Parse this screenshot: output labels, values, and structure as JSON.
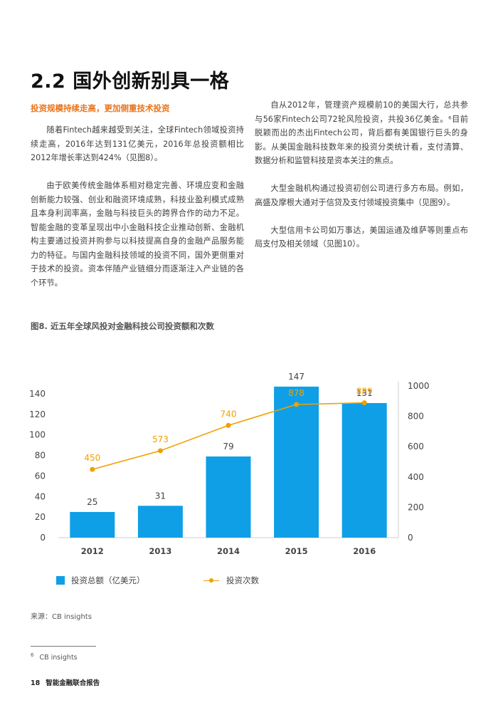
{
  "section_title": "2.2 国外创新别具一格",
  "subheading": "投资规模持续走高，更加侧重技术投资",
  "left_paragraphs": [
    "随着Fintech越来越受到关注，全球Fintech领域投资持续走高，2016年达到131亿美元，2016年总投资额相比2012年增长率达到424%（见图8）。",
    "由于欧美传统金融体系相对稳定完善、环境应变和金融创新能力较强、创业和融资环境成熟，科技业盈利模式成熟且本身利润率高，金融与科技巨头的跨界合作的动力不足。智能金融的变革呈现出中小金融科技企业推动创新、金融机构主要通过投资并购参与以科技提高自身的金融产品服务能力的特征。与国内金融科技领域的投资不同，国外更侧重对于技术的投资。资本伴随产业链细分而逐渐注入产业链的各个环节。"
  ],
  "right_paragraphs": [
    "自从2012年，管理资产规模前10的美国大行，总共参与56家Fintech公司72轮风险投资，共投36亿美金。⁶目前脱颖而出的杰出Fintech公司，背后都有美国银行巨头的身影。从美国金融科技数年来的投资分类统计看，支付清算、数据分析和监管科技是资本关注的焦点。",
    "大型金融机构通过投资初创公司进行多方布局。例如，高盛及摩根大通对于信贷及支付领域投资集中（见图9）。",
    "大型信用卡公司如万事达，美国运通及维萨等则重点布局支付及相关领域（见图10）。"
  ],
  "figure_title": "图8. 近五年全球风投对金融科技公司投资额和次数",
  "chart_data": {
    "type": "bar",
    "categories": [
      "2012",
      "2013",
      "2014",
      "2015",
      "2016"
    ],
    "series": [
      {
        "name": "投资总额（亿美元）",
        "type": "bar",
        "axis": "left",
        "values": [
          25,
          31,
          79,
          147,
          131
        ],
        "labels": [
          "25",
          "31",
          "79",
          "147",
          "131"
        ],
        "color": "#0f9fe6"
      },
      {
        "name": "投资次数",
        "type": "line",
        "axis": "right",
        "values": [
          450,
          573,
          740,
          878,
          889
        ],
        "labels": [
          "450",
          "573",
          "740",
          "878",
          "889"
        ],
        "color": "#f0a000"
      }
    ],
    "y_left": {
      "min": 0,
      "max": 140,
      "ticks": [
        "0",
        "20",
        "40",
        "60",
        "80",
        "100",
        "120",
        "140"
      ]
    },
    "y_right": {
      "min": 0,
      "max": 1000,
      "ticks": [
        "0",
        "200",
        "400",
        "600",
        "800",
        "1000"
      ]
    },
    "grid": false,
    "legend_position": "bottom"
  },
  "source": "来源：CB insights",
  "footnote": {
    "mark": "6",
    "text": "CB insights"
  },
  "footer": {
    "page": "18",
    "title": "智能金融联合报告"
  }
}
